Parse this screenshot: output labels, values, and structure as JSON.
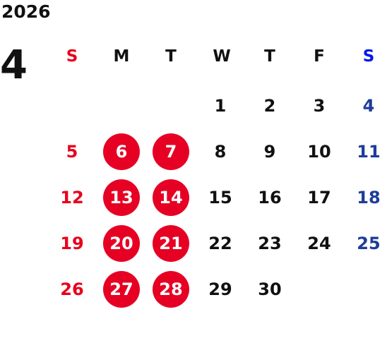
{
  "calendar": {
    "year": "2026",
    "month": "4",
    "weekdays": [
      "S",
      "M",
      "T",
      "W",
      "T",
      "F",
      "S"
    ],
    "highlight_color": "#e60024",
    "sunday_color": "#e8001c",
    "saturday_header_color": "#0018e8",
    "saturday_color": "#1f3c99",
    "weeks": [
      [
        "",
        "",
        "",
        "1",
        "2",
        "3",
        "4"
      ],
      [
        "5",
        "6",
        "7",
        "8",
        "9",
        "10",
        "11"
      ],
      [
        "12",
        "13",
        "14",
        "15",
        "16",
        "17",
        "18"
      ],
      [
        "19",
        "20",
        "21",
        "22",
        "23",
        "24",
        "25"
      ],
      [
        "26",
        "27",
        "28",
        "29",
        "30",
        "",
        ""
      ]
    ],
    "highlighted_days": [
      "6",
      "7",
      "13",
      "14",
      "20",
      "21",
      "27",
      "28"
    ]
  }
}
